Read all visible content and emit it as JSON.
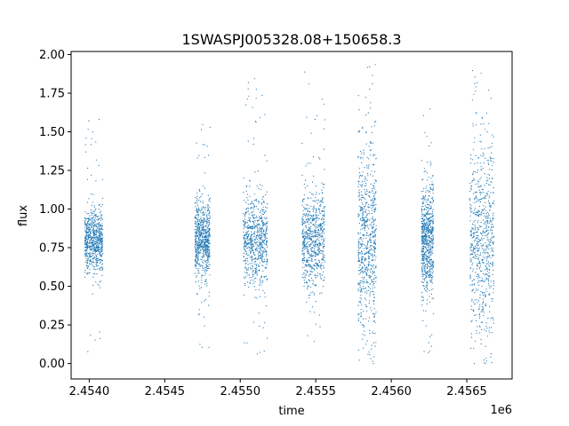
{
  "chart_data": {
    "type": "scatter",
    "title": "1SWASPJ005328.08+150658.3",
    "xlabel": "time",
    "ylabel": "flux",
    "x_offset_label": "1e6",
    "xlim": [
      2453880,
      2456800
    ],
    "ylim": [
      -0.1,
      2.02
    ],
    "x_ticks": [
      {
        "value": 2454000,
        "label": "2.4540"
      },
      {
        "value": 2454500,
        "label": "2.4545"
      },
      {
        "value": 2455000,
        "label": "2.4550"
      },
      {
        "value": 2455500,
        "label": "2.4555"
      },
      {
        "value": 2456000,
        "label": "2.4560"
      },
      {
        "value": 2456500,
        "label": "2.4565"
      }
    ],
    "y_ticks": [
      {
        "value": 0.0,
        "label": "0.00"
      },
      {
        "value": 0.25,
        "label": "0.25"
      },
      {
        "value": 0.5,
        "label": "0.50"
      },
      {
        "value": 0.75,
        "label": "0.75"
      },
      {
        "value": 1.0,
        "label": "1.00"
      },
      {
        "value": 1.25,
        "label": "1.25"
      },
      {
        "value": 1.5,
        "label": "1.50"
      },
      {
        "value": 1.75,
        "label": "1.75"
      },
      {
        "value": 2.0,
        "label": "2.00"
      }
    ],
    "grid": false,
    "marker_color": "#1f77b4",
    "observing_seasons": [
      {
        "t_start": 2453970,
        "t_end": 2454090,
        "median_flux": 0.79,
        "flux_min": 0.02,
        "flux_max": 1.62,
        "spread": 0.1
      },
      {
        "t_start": 2454700,
        "t_end": 2454800,
        "median_flux": 0.8,
        "flux_min": 0.1,
        "flux_max": 1.55,
        "spread": 0.12
      },
      {
        "t_start": 2455020,
        "t_end": 2455180,
        "median_flux": 0.8,
        "flux_min": 0.04,
        "flux_max": 1.9,
        "spread": 0.14
      },
      {
        "t_start": 2455410,
        "t_end": 2455560,
        "median_flux": 0.8,
        "flux_min": 0.04,
        "flux_max": 1.93,
        "spread": 0.15
      },
      {
        "t_start": 2455780,
        "t_end": 2455900,
        "median_flux": 0.8,
        "flux_min": 0.0,
        "flux_max": 1.94,
        "spread": 0.28
      },
      {
        "t_start": 2456200,
        "t_end": 2456280,
        "median_flux": 0.8,
        "flux_min": 0.05,
        "flux_max": 1.7,
        "spread": 0.18
      },
      {
        "t_start": 2456520,
        "t_end": 2456680,
        "median_flux": 0.8,
        "flux_min": 0.0,
        "flux_max": 1.94,
        "spread": 0.3
      }
    ]
  }
}
